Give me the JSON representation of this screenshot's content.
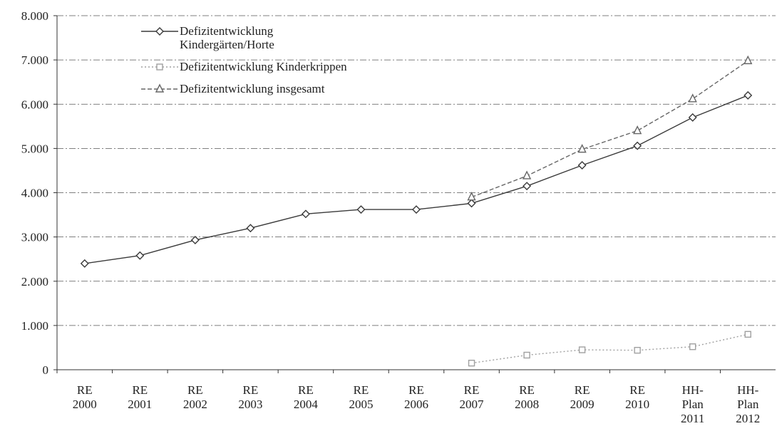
{
  "chart_data": {
    "type": "line",
    "categories": [
      [
        "RE",
        "2000"
      ],
      [
        "RE",
        "2001"
      ],
      [
        "RE",
        "2002"
      ],
      [
        "RE",
        "2003"
      ],
      [
        "RE",
        "2004"
      ],
      [
        "RE",
        "2005"
      ],
      [
        "RE",
        "2006"
      ],
      [
        "RE",
        "2007"
      ],
      [
        "RE",
        "2008"
      ],
      [
        "RE",
        "2009"
      ],
      [
        "RE",
        "2010"
      ],
      [
        "HH-",
        "Plan",
        "2011"
      ],
      [
        "HH-",
        "Plan",
        "2012"
      ]
    ],
    "series": [
      {
        "name": "Defizitentwicklung Kindergärten/Horte",
        "color": "#3a3a3a",
        "marker": "diamond",
        "dash": "none",
        "values": [
          2400,
          2580,
          2930,
          3200,
          3520,
          3620,
          3620,
          3760,
          4150,
          4620,
          5060,
          5700,
          6200
        ]
      },
      {
        "name": "Defizitentwicklung Kinderkrippen",
        "color": "#a0a0a0",
        "marker": "square",
        "dash": "2 3",
        "values": [
          null,
          null,
          null,
          null,
          null,
          null,
          null,
          150,
          330,
          450,
          440,
          520,
          800
        ]
      },
      {
        "name": "Defizitentwicklung insgesamt",
        "color": "#666666",
        "marker": "triangle",
        "dash": "6 3",
        "values": [
          null,
          null,
          null,
          null,
          null,
          null,
          null,
          3900,
          4380,
          4980,
          5400,
          6120,
          6980
        ]
      }
    ],
    "ylim": [
      0,
      8000
    ],
    "yticks": [
      0,
      {
        "value": 1000,
        "label": "1.000"
      },
      {
        "value": 2000,
        "label": "2.000"
      },
      {
        "value": 3000,
        "label": "3.000"
      },
      {
        "value": 4000,
        "label": "4.000"
      },
      {
        "value": 5000,
        "label": "5.000"
      },
      {
        "value": 6000,
        "label": "6.000"
      },
      {
        "value": 7000,
        "label": "7.000"
      },
      {
        "value": 8000,
        "label": "8.000"
      }
    ],
    "grid": true,
    "legend": "top-left"
  }
}
